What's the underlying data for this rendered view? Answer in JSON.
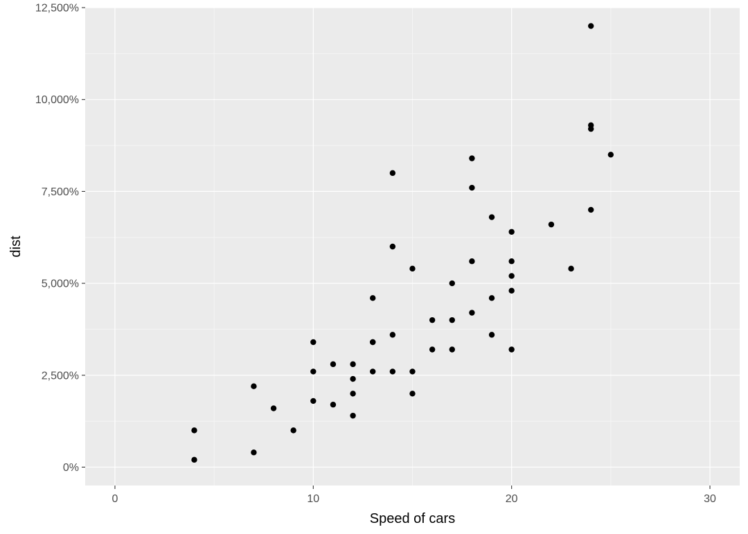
{
  "colors": {
    "panel_background": "#EBEBEB",
    "grid_major": "#FFFFFF",
    "grid_minor": "#F5F5F5",
    "tick_text": "#4D4D4D",
    "tick_mark": "#333333",
    "point": "#000000"
  },
  "chart_data": {
    "type": "scatter",
    "xlabel": "Speed of cars",
    "ylabel": "dist",
    "xlim": [
      -1.5,
      31.5
    ],
    "ylim": [
      -500,
      12500
    ],
    "x_ticks": [
      0,
      10,
      20,
      30
    ],
    "x_tick_labels": [
      "0",
      "10",
      "20",
      "30"
    ],
    "y_ticks": [
      0,
      2500,
      5000,
      7500,
      10000,
      12500
    ],
    "y_tick_labels": [
      "0%",
      "2,500%",
      "5,000%",
      "7,500%",
      "10,000%",
      "12,500%"
    ],
    "grid": true,
    "series": [
      {
        "x": [
          4,
          4,
          7,
          7,
          8,
          9,
          10,
          10,
          10,
          11,
          11,
          12,
          12,
          12,
          12,
          13,
          13,
          13,
          13,
          14,
          14,
          14,
          14,
          15,
          15,
          15,
          16,
          16,
          17,
          17,
          17,
          18,
          18,
          18,
          18,
          19,
          19,
          19,
          20,
          20,
          20,
          20,
          20,
          22,
          23,
          24,
          24,
          24,
          24,
          25
        ],
        "y": [
          200,
          1000,
          400,
          2200,
          1600,
          1000,
          1800,
          2600,
          3400,
          1700,
          2800,
          1400,
          2000,
          2400,
          2800,
          2600,
          3400,
          3400,
          4600,
          2600,
          3600,
          6000,
          8000,
          2000,
          2600,
          5400,
          3200,
          4000,
          3200,
          4000,
          5000,
          4200,
          5600,
          7600,
          8400,
          3600,
          4600,
          6800,
          3200,
          4800,
          5200,
          5600,
          6400,
          6600,
          5400,
          7000,
          9200,
          9300,
          12000,
          8500
        ]
      }
    ]
  }
}
